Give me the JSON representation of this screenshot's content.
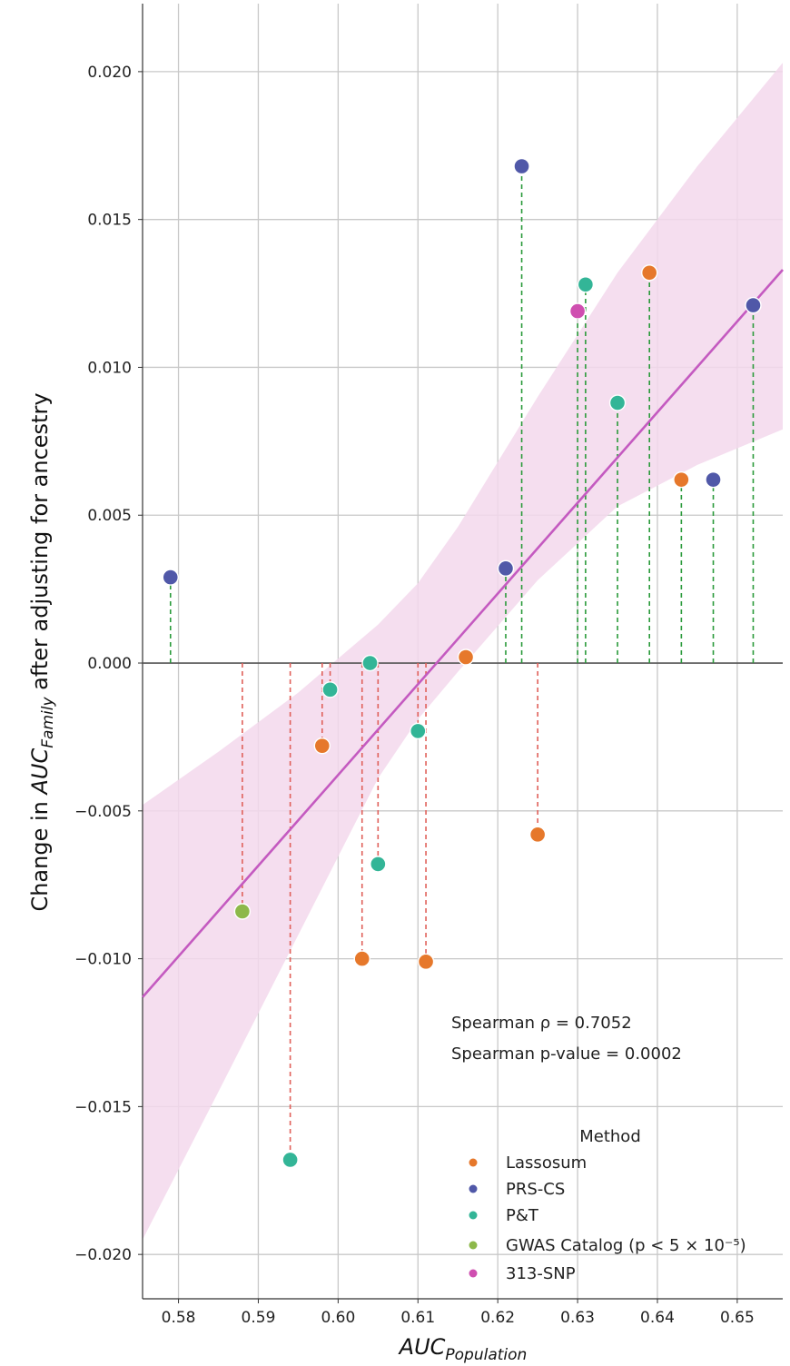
{
  "chart_data": {
    "type": "scatter",
    "title": "",
    "xlabel_main": "AUC",
    "xlabel_sub": "Population",
    "ylabel_pre": "Change in ",
    "ylabel_main": "AUC",
    "ylabel_sub": "Family",
    "ylabel_post": " after adjusting for ancestry",
    "xlim": [
      0.5755,
      0.6557
    ],
    "ylim": [
      -0.0215,
      0.0223
    ],
    "xticks": [
      0.58,
      0.59,
      0.6,
      0.61,
      0.62,
      0.63,
      0.64,
      0.65
    ],
    "xtick_labels": [
      "0.58",
      "0.59",
      "0.60",
      "0.61",
      "0.62",
      "0.63",
      "0.64",
      "0.65"
    ],
    "yticks": [
      0.02,
      0.015,
      0.01,
      0.005,
      0.0,
      -0.005,
      -0.01,
      -0.015,
      -0.02
    ],
    "ytick_labels": [
      "0.020",
      "0.015",
      "0.010",
      "0.005",
      "0.000",
      "−0.005",
      "−0.010",
      "−0.015",
      "−0.020"
    ],
    "grid": true,
    "colors": {
      "Lassosum": "#e6782b",
      "PRS-CS": "#5058a8",
      "P&T": "#33b597",
      "GWAS Catalog": "#8db84a",
      "313-SNP": "#cf4fb0",
      "regression": "#c45ac0",
      "band": "#f3d8ec",
      "positive_stem": "#2a9a3a",
      "negative_stem": "#e0605a"
    },
    "points": [
      {
        "method": "PRS-CS",
        "x": 0.579,
        "y": 0.0029
      },
      {
        "method": "GWAS Catalog",
        "x": 0.588,
        "y": -0.0084
      },
      {
        "method": "P&T",
        "x": 0.594,
        "y": -0.0168
      },
      {
        "method": "Lassosum",
        "x": 0.598,
        "y": -0.0028
      },
      {
        "method": "P&T",
        "x": 0.599,
        "y": -0.0009
      },
      {
        "method": "Lassosum",
        "x": 0.603,
        "y": -0.01
      },
      {
        "method": "P&T",
        "x": 0.604,
        "y": 0.0
      },
      {
        "method": "P&T",
        "x": 0.605,
        "y": -0.0068
      },
      {
        "method": "P&T",
        "x": 0.61,
        "y": -0.0023
      },
      {
        "method": "Lassosum",
        "x": 0.611,
        "y": -0.0101
      },
      {
        "method": "Lassosum",
        "x": 0.616,
        "y": 0.0002
      },
      {
        "method": "PRS-CS",
        "x": 0.621,
        "y": 0.0032
      },
      {
        "method": "PRS-CS",
        "x": 0.623,
        "y": 0.0168
      },
      {
        "method": "Lassosum",
        "x": 0.625,
        "y": -0.0058
      },
      {
        "method": "313-SNP",
        "x": 0.63,
        "y": 0.0119
      },
      {
        "method": "P&T",
        "x": 0.631,
        "y": 0.0128
      },
      {
        "method": "P&T",
        "x": 0.635,
        "y": 0.0088
      },
      {
        "method": "Lassosum",
        "x": 0.639,
        "y": 0.0132
      },
      {
        "method": "Lassosum",
        "x": 0.643,
        "y": 0.0062
      },
      {
        "method": "PRS-CS",
        "x": 0.647,
        "y": 0.0062
      },
      {
        "method": "PRS-CS",
        "x": 0.652,
        "y": 0.0121
      }
    ],
    "regression": {
      "x": [
        0.5755,
        0.6557
      ],
      "y": [
        -0.0113,
        0.0133
      ]
    },
    "confidence_band": {
      "x": [
        0.5755,
        0.585,
        0.595,
        0.605,
        0.61,
        0.615,
        0.625,
        0.635,
        0.645,
        0.6557
      ],
      "upper": [
        -0.0048,
        -0.003,
        -0.001,
        0.0013,
        0.0027,
        0.0046,
        0.009,
        0.0132,
        0.0168,
        0.0203
      ],
      "lower": [
        -0.0195,
        -0.0145,
        -0.0092,
        -0.0039,
        -0.0019,
        -0.0003,
        0.0028,
        0.0053,
        0.0067,
        0.0079
      ]
    },
    "annotations": [
      "Spearman ρ = 0.7052",
      "Spearman p-value = 0.0002"
    ],
    "legend": {
      "title": "Method",
      "position": "bottom-right",
      "entries": [
        {
          "label": "Lassosum",
          "method": "Lassosum"
        },
        {
          "label": "PRS-CS",
          "method": "PRS-CS"
        },
        {
          "label": "P&T",
          "method": "P&T"
        },
        {
          "label": "GWAS Catalog (p < 5 × 10⁻⁵)",
          "method": "GWAS Catalog"
        },
        {
          "label": "313-SNP",
          "method": "313-SNP"
        }
      ]
    }
  }
}
